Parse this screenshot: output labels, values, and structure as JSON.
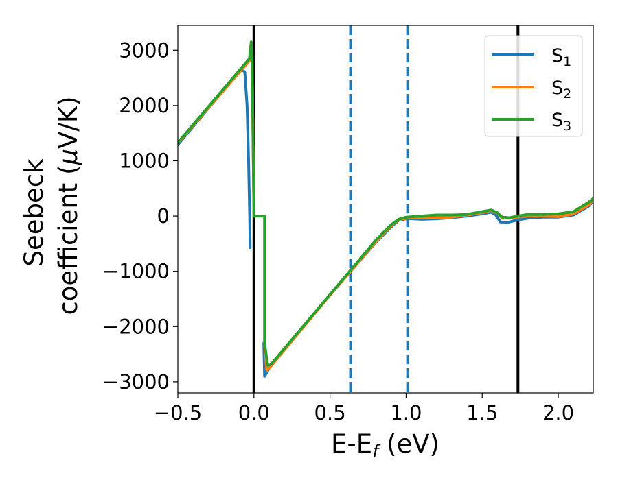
{
  "chart_data": {
    "type": "line",
    "title": "",
    "xlabel": "E-E_f (eV)",
    "ylabel_line1": "Seebeck",
    "ylabel_line2": "coefficient  (μV/K)",
    "xlim": [
      -0.5,
      2.23
    ],
    "ylim": [
      -3200,
      3450
    ],
    "x_ticks": [
      -0.5,
      0.0,
      0.5,
      1.0,
      1.5,
      2.0
    ],
    "x_tick_labels": [
      "−0.5",
      "0.0",
      "0.5",
      "1.0",
      "1.5",
      "2.0"
    ],
    "y_ticks": [
      -3000,
      -2000,
      -1000,
      0,
      1000,
      2000,
      3000
    ],
    "y_tick_labels": [
      "−3000",
      "−2000",
      "−1000",
      "0",
      "1000",
      "2000",
      "3000"
    ],
    "grid": false,
    "legend_position": "top-right",
    "vertical_lines": [
      {
        "x": 0.0,
        "style": "solid",
        "color": "#000000"
      },
      {
        "x": 1.735,
        "style": "solid",
        "color": "#000000"
      },
      {
        "x": 0.635,
        "style": "dashed",
        "color": "#1f77b4"
      },
      {
        "x": 1.01,
        "style": "dashed",
        "color": "#1f77b4"
      }
    ],
    "series": [
      {
        "name": "S1",
        "legend_main": "S",
        "legend_sub": "1",
        "color": "#1f77b4",
        "segments": [
          [
            [
              -0.5,
              1290
            ],
            [
              -0.08,
              2670
            ],
            [
              -0.06,
              2600
            ],
            [
              -0.045,
              2000
            ],
            [
              -0.035,
              1000
            ],
            [
              -0.028,
              0
            ],
            [
              -0.025,
              -570
            ]
          ],
          [
            [
              0.065,
              -2300
            ],
            [
              0.07,
              -2900
            ],
            [
              0.1,
              -2750
            ],
            [
              0.5,
              -1430
            ],
            [
              0.635,
              -1000
            ],
            [
              0.8,
              -480
            ],
            [
              0.9,
              -200
            ],
            [
              0.95,
              -80
            ],
            [
              1.0,
              -50
            ],
            [
              1.01,
              -45
            ],
            [
              1.1,
              -60
            ],
            [
              1.2,
              -50
            ],
            [
              1.3,
              -30
            ],
            [
              1.4,
              0
            ],
            [
              1.5,
              40
            ],
            [
              1.56,
              70
            ],
            [
              1.59,
              20
            ],
            [
              1.62,
              -110
            ],
            [
              1.66,
              -120
            ],
            [
              1.735,
              -70
            ],
            [
              1.8,
              -40
            ],
            [
              1.9,
              -20
            ],
            [
              2.0,
              -20
            ],
            [
              2.1,
              20
            ],
            [
              2.2,
              180
            ],
            [
              2.23,
              270
            ]
          ]
        ]
      },
      {
        "name": "S2",
        "legend_main": "S",
        "legend_sub": "2",
        "color": "#ff7f0e",
        "segments": [
          [
            [
              -0.5,
              1320
            ],
            [
              -0.02,
              2840
            ],
            [
              -0.012,
              2900
            ],
            [
              0.0,
              0
            ],
            [
              0.07,
              0
            ],
            [
              0.07,
              -2300
            ],
            [
              0.085,
              -2790
            ],
            [
              0.11,
              -2720
            ],
            [
              0.5,
              -1430
            ],
            [
              0.635,
              -1000
            ],
            [
              0.8,
              -470
            ],
            [
              0.9,
              -180
            ],
            [
              0.95,
              -70
            ],
            [
              1.0,
              -40
            ],
            [
              1.05,
              -30
            ],
            [
              1.2,
              -30
            ],
            [
              1.3,
              -20
            ],
            [
              1.4,
              20
            ],
            [
              1.5,
              60
            ],
            [
              1.56,
              100
            ],
            [
              1.6,
              50
            ],
            [
              1.63,
              -40
            ],
            [
              1.68,
              -40
            ],
            [
              1.735,
              -20
            ],
            [
              1.8,
              0
            ],
            [
              1.9,
              0
            ],
            [
              2.0,
              -10
            ],
            [
              2.1,
              40
            ],
            [
              2.2,
              200
            ],
            [
              2.23,
              300
            ]
          ]
        ]
      },
      {
        "name": "S3",
        "legend_main": "S",
        "legend_sub": "3",
        "color": "#2ca02c",
        "segments": [
          [
            [
              -0.5,
              1330
            ],
            [
              -0.03,
              2850
            ],
            [
              -0.022,
              3050
            ],
            [
              -0.018,
              3150
            ],
            [
              -0.012,
              2850
            ],
            [
              0.0,
              0
            ],
            [
              0.07,
              0
            ],
            [
              0.07,
              -2300
            ],
            [
              0.09,
              -2700
            ],
            [
              0.11,
              -2690
            ],
            [
              0.5,
              -1420
            ],
            [
              0.635,
              -980
            ],
            [
              0.8,
              -440
            ],
            [
              0.9,
              -160
            ],
            [
              0.95,
              -60
            ],
            [
              1.0,
              -20
            ],
            [
              1.05,
              -10
            ],
            [
              1.2,
              20
            ],
            [
              1.3,
              20
            ],
            [
              1.4,
              30
            ],
            [
              1.5,
              80
            ],
            [
              1.56,
              110
            ],
            [
              1.6,
              60
            ],
            [
              1.63,
              -20
            ],
            [
              1.68,
              -30
            ],
            [
              1.735,
              0
            ],
            [
              1.8,
              30
            ],
            [
              1.9,
              30
            ],
            [
              2.0,
              40
            ],
            [
              2.1,
              80
            ],
            [
              2.2,
              250
            ],
            [
              2.23,
              320
            ]
          ]
        ]
      }
    ]
  }
}
